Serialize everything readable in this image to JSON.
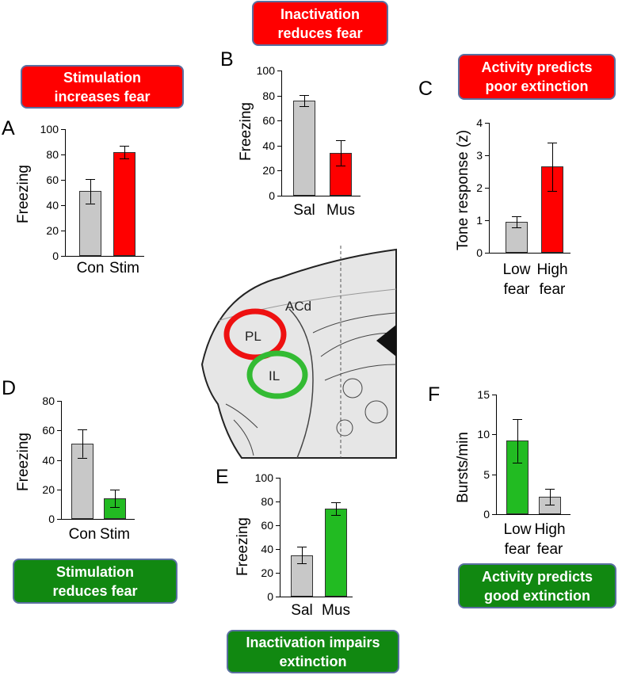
{
  "chart_data": [
    {
      "type": "bar",
      "panel": "A",
      "annotation": "Stimulation increases fear",
      "y_label": "Freezing",
      "categories": [
        "Con",
        "Stim"
      ],
      "values": [
        51,
        82
      ],
      "errors": [
        9.5,
        5
      ],
      "colors": [
        "#c8c8c8",
        "#ff0000"
      ],
      "ylim": [
        0,
        100
      ],
      "yticks": [
        0,
        20,
        40,
        60,
        80,
        100
      ]
    },
    {
      "type": "bar",
      "panel": "B",
      "annotation": "Inactivation reduces fear",
      "y_label": "Freezing",
      "categories": [
        "Sal",
        "Mus"
      ],
      "values": [
        76,
        34
      ],
      "errors": [
        4.5,
        10
      ],
      "colors": [
        "#c8c8c8",
        "#ff0000"
      ],
      "ylim": [
        0,
        100
      ],
      "yticks": [
        0,
        20,
        40,
        60,
        80,
        100
      ]
    },
    {
      "type": "bar",
      "panel": "C",
      "annotation": "Activity predicts poor extinction",
      "y_label": "Tone response (z)",
      "categories": [
        "Low fear",
        "High fear"
      ],
      "values": [
        0.95,
        2.65
      ],
      "errors": [
        0.18,
        0.75
      ],
      "colors": [
        "#c8c8c8",
        "#ff0000"
      ],
      "ylim": [
        0,
        4
      ],
      "yticks": [
        0,
        1,
        2,
        3,
        4
      ]
    },
    {
      "type": "bar",
      "panel": "D",
      "annotation": "Stimulation reduces fear",
      "y_label": "Freezing",
      "categories": [
        "Con",
        "Stim"
      ],
      "values": [
        51,
        14
      ],
      "errors": [
        9.5,
        6
      ],
      "colors": [
        "#c8c8c8",
        "#22bb22"
      ],
      "ylim": [
        0,
        80
      ],
      "yticks": [
        0,
        20,
        40,
        60,
        80
      ]
    },
    {
      "type": "bar",
      "panel": "E",
      "annotation": "Inactivation impairs extinction",
      "y_label": "Freezing",
      "categories": [
        "Sal",
        "Mus"
      ],
      "values": [
        35,
        74
      ],
      "errors": [
        7,
        5.5
      ],
      "colors": [
        "#c8c8c8",
        "#22bb22"
      ],
      "ylim": [
        0,
        100
      ],
      "yticks": [
        0,
        20,
        40,
        60,
        80,
        100
      ]
    },
    {
      "type": "bar",
      "panel": "F",
      "annotation": "Activity predicts good extinction",
      "y_label": "Bursts/min",
      "categories": [
        "Low fear",
        "High fear"
      ],
      "values": [
        9.2,
        2.2
      ],
      "errors": [
        2.7,
        1
      ],
      "colors": [
        "#22bb22",
        "#c8c8c8"
      ],
      "ylim": [
        0,
        15
      ],
      "yticks": [
        0,
        5,
        10,
        15
      ]
    }
  ],
  "brain": {
    "labels": [
      "ACd",
      "PL",
      "IL"
    ]
  }
}
